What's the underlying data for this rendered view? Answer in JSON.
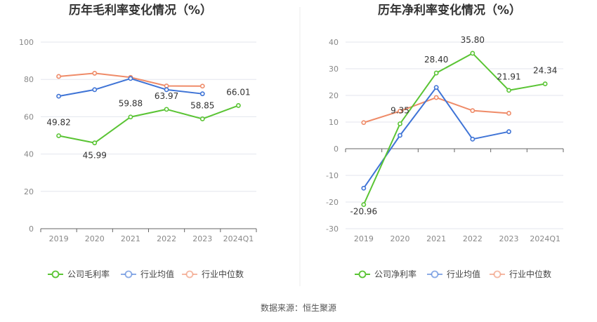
{
  "colors": {
    "company": "#5ac434",
    "industry_avg": "#3f74d6",
    "industry_median": "#ef8b68",
    "grid": "#e3e6ee",
    "axis": "#999999"
  },
  "source": "数据来源：恒生聚源",
  "chart_data": [
    {
      "type": "line",
      "title": "历年毛利率变化情况（%）",
      "categories": [
        "2019",
        "2020",
        "2021",
        "2022",
        "2023",
        "2024Q1"
      ],
      "ylim": [
        0,
        100
      ],
      "yticks": [
        0,
        20,
        40,
        60,
        80,
        100
      ],
      "grid": true,
      "legend_position": "bottom",
      "series": [
        {
          "key": "company",
          "name": "公司毛利率",
          "values": [
            49.82,
            45.99,
            59.88,
            63.97,
            58.85,
            66.01
          ],
          "labels": [
            "49.82",
            "45.99",
            "59.88",
            "63.97",
            "58.85",
            "66.01"
          ]
        },
        {
          "key": "industry_avg",
          "name": "行业均值",
          "values": [
            71.0,
            74.5,
            80.5,
            74.5,
            72.3,
            null
          ]
        },
        {
          "key": "industry_median",
          "name": "行业中位数",
          "values": [
            81.6,
            83.3,
            81.1,
            76.5,
            76.4,
            null
          ]
        }
      ]
    },
    {
      "type": "line",
      "title": "历年净利率变化情况（%）",
      "categories": [
        "2019",
        "2020",
        "2021",
        "2022",
        "2023",
        "2024Q1"
      ],
      "ylim": [
        -30,
        40
      ],
      "yticks": [
        -30,
        -20,
        -10,
        0,
        10,
        20,
        30,
        40
      ],
      "grid": true,
      "legend_position": "bottom",
      "series": [
        {
          "key": "company",
          "name": "公司净利率",
          "values": [
            -20.96,
            9.35,
            28.4,
            35.8,
            21.91,
            24.34
          ],
          "labels": [
            "-20.96",
            "9.35",
            "28.40",
            "35.80",
            "21.91",
            "24.34"
          ]
        },
        {
          "key": "industry_avg",
          "name": "行业均值",
          "values": [
            -14.8,
            5.0,
            23.0,
            3.6,
            6.4,
            null
          ]
        },
        {
          "key": "industry_median",
          "name": "行业中位数",
          "values": [
            9.8,
            14.1,
            19.2,
            14.3,
            13.3,
            null
          ]
        }
      ]
    }
  ]
}
